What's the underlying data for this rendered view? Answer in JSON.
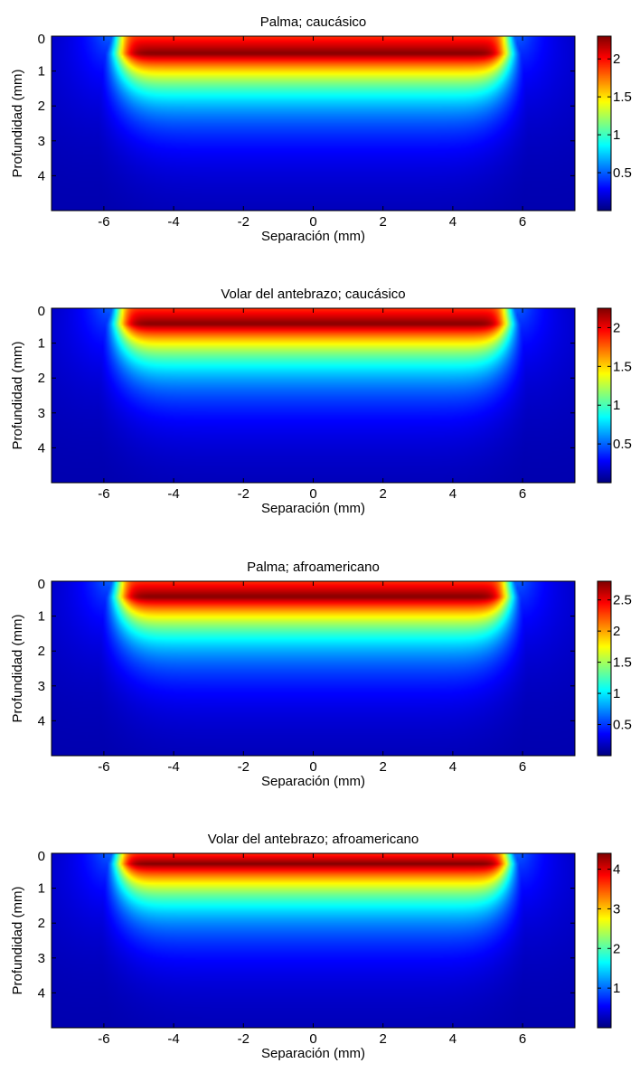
{
  "chart_data": [
    {
      "type": "heatmap",
      "title": "Palma; caucásico",
      "xlabel": "Separación (mm)",
      "ylabel": "Profundidad (mm)",
      "xlim": [
        -7.5,
        7.5
      ],
      "ylim": [
        0,
        5
      ],
      "y_reversed": true,
      "xticks": [
        -6,
        -4,
        -2,
        0,
        2,
        4,
        6
      ],
      "yticks": [
        0,
        1,
        2,
        3,
        4
      ],
      "colormap": "jet",
      "clim": [
        0,
        2.3
      ],
      "colorbar_ticks": [
        0.5,
        1,
        1.5,
        2
      ],
      "source_half_width": 5.6,
      "peak_depth": 0.5,
      "peak_value": 2.3
    },
    {
      "type": "heatmap",
      "title": "Volar del antebrazo; caucásico",
      "xlabel": "Separación (mm)",
      "ylabel": "Profundidad (mm)",
      "xlim": [
        -7.5,
        7.5
      ],
      "ylim": [
        0,
        5
      ],
      "y_reversed": true,
      "xticks": [
        -6,
        -4,
        -2,
        0,
        2,
        4,
        6
      ],
      "yticks": [
        0,
        1,
        2,
        3,
        4
      ],
      "colormap": "jet",
      "clim": [
        0,
        2.25
      ],
      "colorbar_ticks": [
        0.5,
        1,
        1.5,
        2
      ],
      "source_half_width": 5.6,
      "peak_depth": 0.45,
      "peak_value": 2.25
    },
    {
      "type": "heatmap",
      "title": "Palma; afroamericano",
      "xlabel": "Separación (mm)",
      "ylabel": "Profundidad (mm)",
      "xlim": [
        -7.5,
        7.5
      ],
      "ylim": [
        0,
        5
      ],
      "y_reversed": true,
      "xticks": [
        -6,
        -4,
        -2,
        0,
        2,
        4,
        6
      ],
      "yticks": [
        0,
        1,
        2,
        3,
        4
      ],
      "colormap": "jet",
      "clim": [
        0,
        2.8
      ],
      "colorbar_ticks": [
        0.5,
        1,
        1.5,
        2,
        2.5
      ],
      "source_half_width": 5.6,
      "peak_depth": 0.45,
      "peak_value": 2.8
    },
    {
      "type": "heatmap",
      "title": "Volar del antebrazo; afroamericano",
      "xlabel": "Separación (mm)",
      "ylabel": "Profundidad (mm)",
      "xlim": [
        -7.5,
        7.5
      ],
      "ylim": [
        0,
        5
      ],
      "y_reversed": true,
      "xticks": [
        -6,
        -4,
        -2,
        0,
        2,
        4,
        6
      ],
      "yticks": [
        0,
        1,
        2,
        3,
        4
      ],
      "colormap": "jet",
      "clim": [
        0,
        4.4
      ],
      "colorbar_ticks": [
        1,
        2,
        3,
        4
      ],
      "source_half_width": 5.6,
      "peak_depth": 0.3,
      "peak_value": 4.4
    }
  ]
}
